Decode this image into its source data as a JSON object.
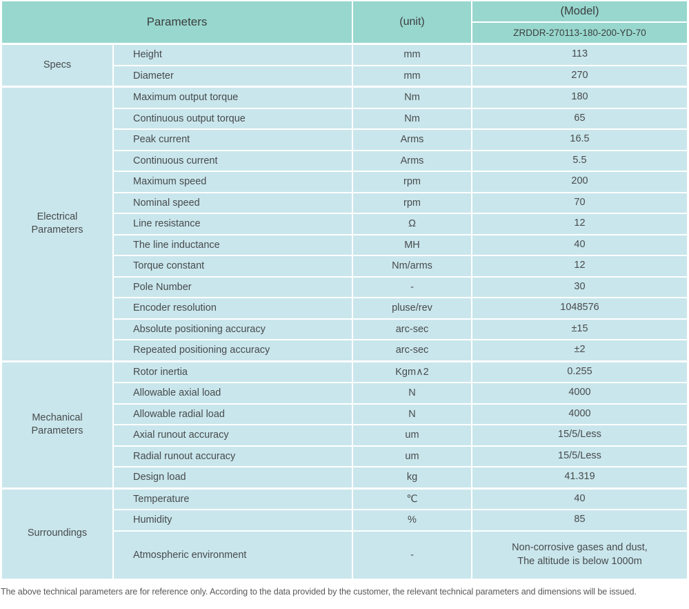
{
  "header": {
    "parameters_label": "Parameters",
    "unit_label": "(unit)",
    "model_label": "(Model)",
    "model_value": "ZRDDR-270113-180-200-YD-70"
  },
  "sections": [
    {
      "label": "Specs",
      "rows": [
        {
          "param": "Height",
          "unit": "mm",
          "value": "113"
        },
        {
          "param": "Diameter",
          "unit": "mm",
          "value": "270"
        }
      ]
    },
    {
      "label": "Electrical\nParameters",
      "rows": [
        {
          "param": "Maximum output torque",
          "unit": "Nm",
          "value": "180"
        },
        {
          "param": "Continuous output torque",
          "unit": "Nm",
          "value": "65"
        },
        {
          "param": "Peak current",
          "unit": "Arms",
          "value": "16.5"
        },
        {
          "param": "Continuous current",
          "unit": "Arms",
          "value": "5.5"
        },
        {
          "param": "Maximum speed",
          "unit": "rpm",
          "value": "200"
        },
        {
          "param": "Nominal speed",
          "unit": "rpm",
          "value": "70"
        },
        {
          "param": "Line resistance",
          "unit": "Ω",
          "value": "12"
        },
        {
          "param": "The line inductance",
          "unit": "MH",
          "value": "40"
        },
        {
          "param": "Torque constant",
          "unit": "Nm/arms",
          "value": "12"
        },
        {
          "param": "Pole Number",
          "unit": "-",
          "value": "30"
        },
        {
          "param": "Encoder resolution",
          "unit": "pluse/rev",
          "value": "1048576"
        },
        {
          "param": "Absolute positioning accuracy",
          "unit": "arc-sec",
          "value": "±15"
        },
        {
          "param": "Repeated positioning accuracy",
          "unit": "arc-sec",
          "value": "±2"
        }
      ]
    },
    {
      "label": "Mechanical\nParameters",
      "rows": [
        {
          "param": "Rotor inertia",
          "unit": "Kgm∧2",
          "value": "0.255"
        },
        {
          "param": "Allowable axial load",
          "unit": "N",
          "value": "4000"
        },
        {
          "param": "Allowable radial load",
          "unit": "N",
          "value": "4000"
        },
        {
          "param": "Axial runout accuracy",
          "unit": "um",
          "value": "15/5/Less"
        },
        {
          "param": "Radial runout accuracy",
          "unit": "um",
          "value": "15/5/Less"
        },
        {
          "param": "Design load",
          "unit": "kg",
          "value": "41.319"
        }
      ]
    },
    {
      "label": "Surroundings",
      "rows": [
        {
          "param": "Temperature",
          "unit": "℃",
          "value": "40"
        },
        {
          "param": "Humidity",
          "unit": "%",
          "value": "85"
        },
        {
          "param": "Atmospheric environment",
          "unit": "-",
          "value": "Non-corrosive gases and dust,\nThe altitude is below 1000m",
          "tall": true
        }
      ]
    }
  ],
  "footnote": "The above technical parameters are for reference only. According to the data provided by the customer, the relevant technical parameters and dimensions will be issued.",
  "colors": {
    "header_bg": "#98d7ce",
    "row_bg": "#c9e6ec",
    "text": "#474b4c"
  }
}
